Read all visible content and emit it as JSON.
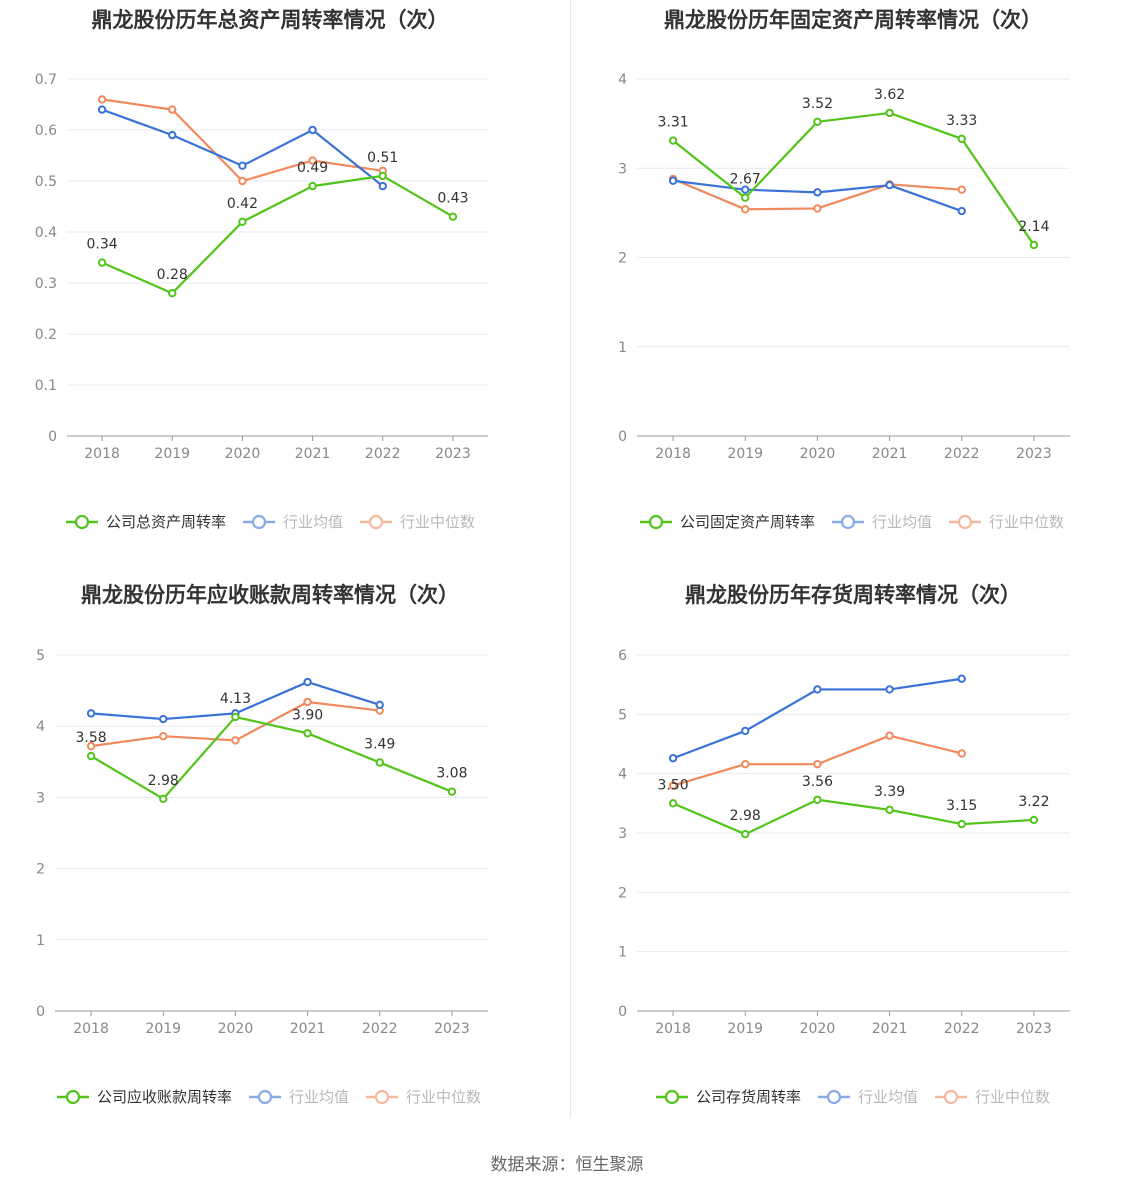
{
  "colors": {
    "company": "#52c41a",
    "average": "#3a72d8",
    "median": "#f08a5d",
    "grid": "#e6e9f0",
    "axis": "#999999"
  },
  "legend": {
    "average": "行业均值",
    "median": "行业中位数"
  },
  "source": "数据来源：恒生聚源",
  "chart_data": [
    {
      "type": "line",
      "title": "鼎龙股份历年总资产周转率情况（次）",
      "categories": [
        "2018",
        "2019",
        "2020",
        "2021",
        "2022",
        "2023"
      ],
      "ylim": [
        0,
        0.7
      ],
      "yticks": [
        "0",
        "0.1",
        "0.2",
        "0.3",
        "0.4",
        "0.5",
        "0.6",
        "0.7"
      ],
      "series": [
        {
          "key": "company",
          "name": "公司总资产周转率",
          "values": [
            0.34,
            0.28,
            0.42,
            0.49,
            0.51,
            0.43
          ],
          "labels": [
            "0.34",
            "0.28",
            "0.42",
            "0.49",
            "0.51",
            "0.43"
          ]
        },
        {
          "key": "average",
          "name": "行业均值",
          "values": [
            0.64,
            0.59,
            0.53,
            0.6,
            0.49,
            null
          ]
        },
        {
          "key": "median",
          "name": "行业中位数",
          "values": [
            0.66,
            0.64,
            0.5,
            0.54,
            0.52,
            null
          ]
        }
      ]
    },
    {
      "type": "line",
      "title": "鼎龙股份历年固定资产周转率情况（次）",
      "categories": [
        "2018",
        "2019",
        "2020",
        "2021",
        "2022",
        "2023"
      ],
      "ylim": [
        0,
        4
      ],
      "yticks": [
        "0",
        "1",
        "2",
        "3",
        "4"
      ],
      "series": [
        {
          "key": "company",
          "name": "公司固定资产周转率",
          "values": [
            3.31,
            2.67,
            3.52,
            3.62,
            3.33,
            2.14
          ],
          "labels": [
            "3.31",
            "2.67",
            "3.52",
            "3.62",
            "3.33",
            "2.14"
          ]
        },
        {
          "key": "average",
          "name": "行业均值",
          "values": [
            2.86,
            2.76,
            2.73,
            2.81,
            2.52,
            null
          ]
        },
        {
          "key": "median",
          "name": "行业中位数",
          "values": [
            2.88,
            2.54,
            2.55,
            2.82,
            2.76,
            null
          ]
        }
      ]
    },
    {
      "type": "line",
      "title": "鼎龙股份历年应收账款周转率情况（次）",
      "categories": [
        "2018",
        "2019",
        "2020",
        "2021",
        "2022",
        "2023"
      ],
      "ylim": [
        0,
        5
      ],
      "yticks": [
        "0",
        "1",
        "2",
        "3",
        "4",
        "5"
      ],
      "series": [
        {
          "key": "company",
          "name": "公司应收账款周转率",
          "values": [
            3.58,
            2.98,
            4.13,
            3.9,
            3.49,
            3.08
          ],
          "labels": [
            "3.58",
            "2.98",
            "4.13",
            "3.90",
            "3.49",
            "3.08"
          ]
        },
        {
          "key": "average",
          "name": "行业均值",
          "values": [
            4.18,
            4.1,
            4.18,
            4.62,
            4.3,
            null
          ]
        },
        {
          "key": "median",
          "name": "行业中位数",
          "values": [
            3.72,
            3.86,
            3.8,
            4.34,
            4.22,
            null
          ]
        }
      ]
    },
    {
      "type": "line",
      "title": "鼎龙股份历年存货周转率情况（次）",
      "categories": [
        "2018",
        "2019",
        "2020",
        "2021",
        "2022",
        "2023"
      ],
      "ylim": [
        0,
        6
      ],
      "yticks": [
        "0",
        "1",
        "2",
        "3",
        "4",
        "5",
        "6"
      ],
      "series": [
        {
          "key": "company",
          "name": "公司存货周转率",
          "values": [
            3.5,
            2.98,
            3.56,
            3.39,
            3.15,
            3.22
          ],
          "labels": [
            "3.50",
            "2.98",
            "3.56",
            "3.39",
            "3.15",
            "3.22"
          ]
        },
        {
          "key": "average",
          "name": "行业均值",
          "values": [
            4.26,
            4.72,
            5.42,
            5.42,
            5.6,
            null
          ]
        },
        {
          "key": "median",
          "name": "行业中位数",
          "values": [
            3.8,
            4.16,
            4.16,
            4.64,
            4.34,
            null
          ]
        }
      ]
    }
  ]
}
